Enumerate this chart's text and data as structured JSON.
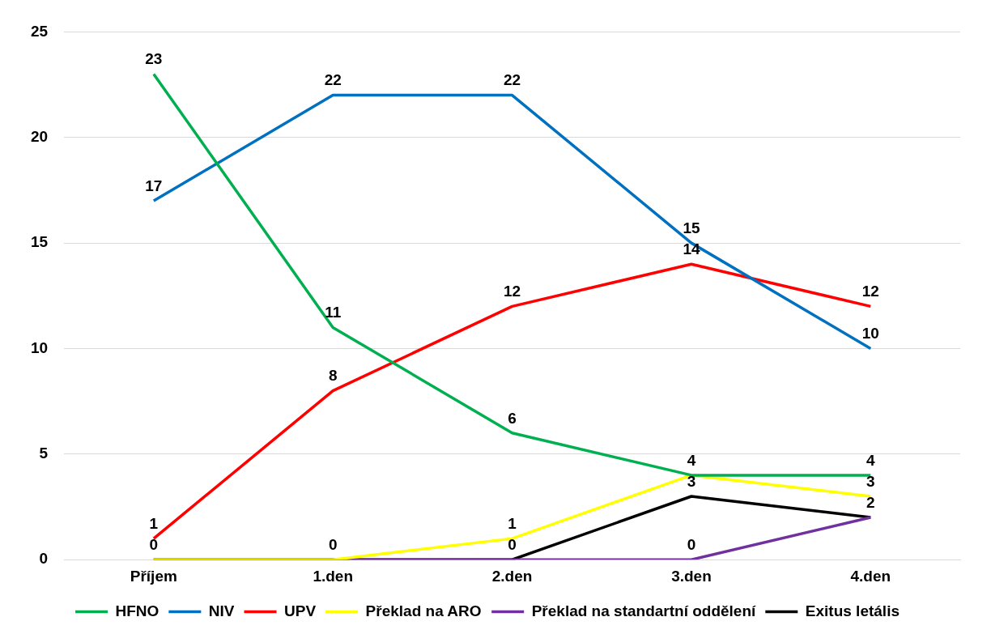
{
  "chart_data": {
    "type": "line",
    "categories": [
      "Příjem",
      "1.den",
      "2.den",
      "3.den",
      "4.den"
    ],
    "series": [
      {
        "name": "HFNO",
        "color": "#00b050",
        "values": [
          23,
          11,
          6,
          4,
          4
        ],
        "value_labels": [
          "23",
          "11",
          "6",
          "4",
          "4"
        ]
      },
      {
        "name": "NIV",
        "color": "#0070c0",
        "values": [
          17,
          22,
          22,
          15,
          10
        ],
        "value_labels": [
          "17",
          "22",
          "22",
          "15",
          "10"
        ]
      },
      {
        "name": "UPV",
        "color": "#ff0000",
        "values": [
          1,
          8,
          12,
          14,
          12
        ],
        "value_labels": [
          "1",
          "8",
          "12",
          "14",
          "12"
        ]
      },
      {
        "name": "Překlad na ARO",
        "color": "#ffff00",
        "values": [
          0,
          0,
          1,
          4,
          3
        ],
        "value_labels": [
          "0",
          "0",
          "1",
          null,
          "3"
        ]
      },
      {
        "name": "Překlad na standartní oddělení",
        "color": "#7030a0",
        "values": [
          0,
          0,
          0,
          0,
          2
        ],
        "value_labels": [
          null,
          null,
          null,
          "0",
          "2"
        ]
      },
      {
        "name": "Exitus letális",
        "color": "#000000",
        "values": [
          0,
          0,
          0,
          3,
          2
        ],
        "value_labels": [
          null,
          null,
          "0",
          "3",
          null
        ]
      }
    ],
    "ylim": [
      0,
      25
    ],
    "yticks": [
      0,
      5,
      10,
      15,
      20,
      25
    ],
    "grid": "y",
    "legend": "bottom",
    "marker": "none",
    "line_style": "solid"
  }
}
